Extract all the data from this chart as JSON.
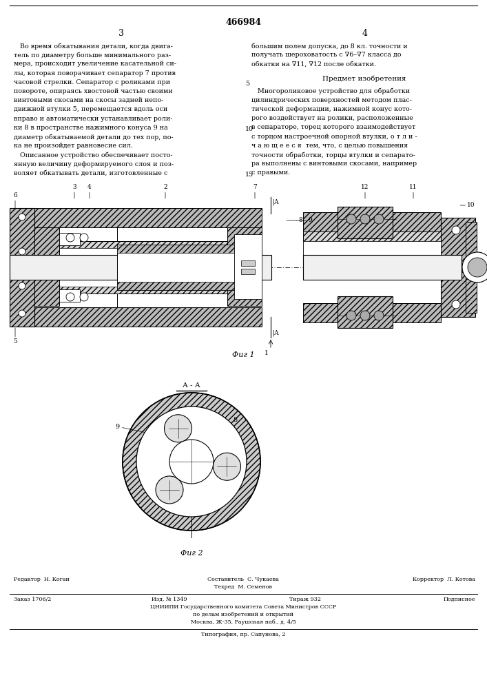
{
  "patent_number": "466984",
  "page_left": "3",
  "page_right": "4",
  "bg_color": "#ffffff",
  "left_col_text": [
    "   Во время обкатывания детали, когда двига-",
    "тель по диаметру больше минимального раз-",
    "мера, происходит увеличение касательной си-",
    "лы, которая поворачивает сепаратор 7 против",
    "часовой стрелки. Сепаратор с роликами при",
    "повороте, опираясь хвостовой частью своими",
    "винтовыми скосами на скосы задней непо-",
    "движной втулки 5, перемещается вдоль оси",
    "вправо и автоматически устанавливает роли-",
    "ки 8 в пространстве нажимного конуса 9 на",
    "диаметр обкатываемой детали до тех пор, по-",
    "ка не произойдет равновесие сил.",
    "   Описанное устройство обеспечивает посто-",
    "янную величину деформируемого слоя и поз-",
    "воляет обкатывать детали, изготовленные с"
  ],
  "right_col_text_top": [
    "большим полем допуска, до 8 кл. точности и",
    "получать шероховатость с ∇6–∇7 класса до",
    "обкатки на ∇11, ∇12 после обкатки."
  ],
  "predmet_header": "Предмет изобретения",
  "predmet_text": [
    "   Многороликовое устройство для обработки",
    "цилиндрических поверхностей методом плас-",
    "тической деформации, нажимной конус кото-",
    "рого воздействует на ролики, расположенные",
    "в сепараторе, торец которого взаимодействует",
    "с торцом настроечной опорной втулки, о т л и -",
    "ч а ю щ е е с я  тем, что, с целью повышения",
    "точности обработки, торцы втулки и сепарато-",
    "ра выполнены с винтовыми скосами, например",
    "с правыми."
  ],
  "line_num_5_row": 4,
  "line_num_10_row": 9,
  "line_num_15_row": 14,
  "fig1_label": "Фиг 1",
  "fig2_label": "Фиг 2",
  "aa_label": "А - А",
  "footer_editor": "Редактор  Н. Коган",
  "footer_composer": "Составитель  С. Чукаева",
  "footer_corrector": "Корректор  Л. Котова",
  "footer_tech": "Техред  М. Семенов",
  "footer_order": "Заказ 1706/2",
  "footer_izd": "Изд. № 1349",
  "footer_tirazh": "Тираж 932",
  "footer_podpisnoe": "Подписное",
  "footer_cniip1": "ЦНИИПИ Государственного комитета Совета Министров СССР",
  "footer_cniip2": "по делам изобретений и открытий",
  "footer_cniip3": "Москва, Ж-35, Раушская наб., д. 4/5",
  "footer_tipograf": "Типография, пр. Сапунова, 2",
  "hatch_color": "#555555",
  "outer_color": "#bbbbbb",
  "inner_color": "#e8e8e8",
  "line_color": "#222222"
}
